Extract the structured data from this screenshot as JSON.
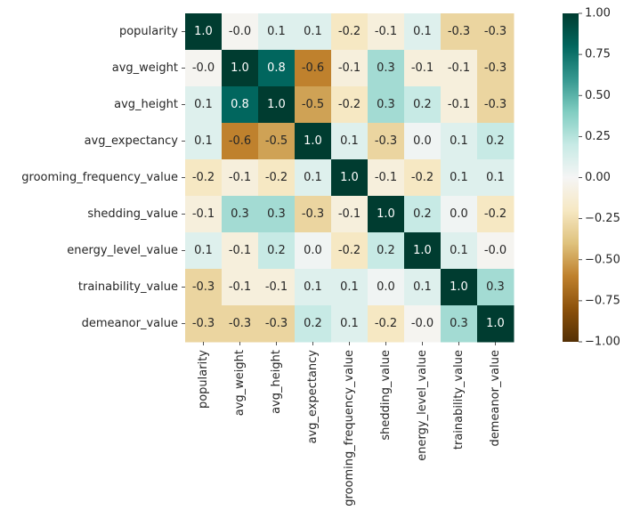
{
  "chart_data": {
    "type": "heatmap",
    "title": "",
    "xlabel": "",
    "ylabel": "",
    "row_labels": [
      "popularity",
      "avg_weight",
      "avg_height",
      "avg_expectancy",
      "grooming_frequency_value",
      "shedding_value",
      "energy_level_value",
      "trainability_value",
      "demeanor_value"
    ],
    "column_labels": [
      "popularity",
      "avg_weight",
      "avg_height",
      "avg_expectancy",
      "grooming_frequency_value",
      "shedding_value",
      "energy_level_value",
      "trainability_value",
      "demeanor_value"
    ],
    "values": [
      [
        1.0,
        -0.02,
        0.1,
        0.1,
        -0.2,
        -0.1,
        0.1,
        -0.3,
        -0.3
      ],
      [
        -0.02,
        1.0,
        0.8,
        -0.6,
        -0.1,
        0.3,
        -0.1,
        -0.1,
        -0.3
      ],
      [
        0.1,
        0.8,
        1.0,
        -0.5,
        -0.2,
        0.3,
        0.2,
        -0.1,
        -0.3
      ],
      [
        0.1,
        -0.6,
        -0.5,
        1.0,
        0.1,
        -0.3,
        0.02,
        0.1,
        0.2
      ],
      [
        -0.2,
        -0.1,
        -0.2,
        0.1,
        1.0,
        -0.1,
        -0.2,
        0.1,
        0.1
      ],
      [
        -0.1,
        0.3,
        0.3,
        -0.3,
        -0.1,
        1.0,
        0.2,
        0.02,
        -0.2
      ],
      [
        0.1,
        -0.1,
        0.2,
        0.02,
        -0.2,
        0.2,
        1.0,
        0.1,
        -0.02
      ],
      [
        -0.3,
        -0.1,
        -0.1,
        0.1,
        0.1,
        0.02,
        0.1,
        1.0,
        0.3
      ],
      [
        -0.3,
        -0.3,
        -0.3,
        0.2,
        0.1,
        -0.2,
        -0.02,
        0.3,
        1.0
      ]
    ],
    "annotations": [
      [
        "1.0",
        "-0.0",
        "0.1",
        "0.1",
        "-0.2",
        "-0.1",
        "0.1",
        "-0.3",
        "-0.3"
      ],
      [
        "-0.0",
        "1.0",
        "0.8",
        "-0.6",
        "-0.1",
        "0.3",
        "-0.1",
        "-0.1",
        "-0.3"
      ],
      [
        "0.1",
        "0.8",
        "1.0",
        "-0.5",
        "-0.2",
        "0.3",
        "0.2",
        "-0.1",
        "-0.3"
      ],
      [
        "0.1",
        "-0.6",
        "-0.5",
        "1.0",
        "0.1",
        "-0.3",
        "0.0",
        "0.1",
        "0.2"
      ],
      [
        "-0.2",
        "-0.1",
        "-0.2",
        "0.1",
        "1.0",
        "-0.1",
        "-0.2",
        "0.1",
        "0.1"
      ],
      [
        "-0.1",
        "0.3",
        "0.3",
        "-0.3",
        "-0.1",
        "1.0",
        "0.2",
        "0.0",
        "-0.2"
      ],
      [
        "0.1",
        "-0.1",
        "0.2",
        "0.0",
        "-0.2",
        "0.2",
        "1.0",
        "0.1",
        "-0.0"
      ],
      [
        "-0.3",
        "-0.1",
        "-0.1",
        "0.1",
        "0.1",
        "0.0",
        "0.1",
        "1.0",
        "0.3"
      ],
      [
        "-0.3",
        "-0.3",
        "-0.3",
        "0.2",
        "0.1",
        "-0.2",
        "-0.0",
        "0.3",
        "1.0"
      ]
    ],
    "colormap": "BrBG",
    "vmin": -1.0,
    "vmax": 1.0,
    "colorbar_ticks": [
      "1.00",
      "0.75",
      "0.50",
      "0.25",
      "0.00",
      "−0.25",
      "−0.50",
      "−0.75",
      "−1.00"
    ],
    "colorbar_tick_values": [
      1.0,
      0.75,
      0.5,
      0.25,
      0.0,
      -0.25,
      -0.5,
      -0.75,
      -1.0
    ]
  }
}
